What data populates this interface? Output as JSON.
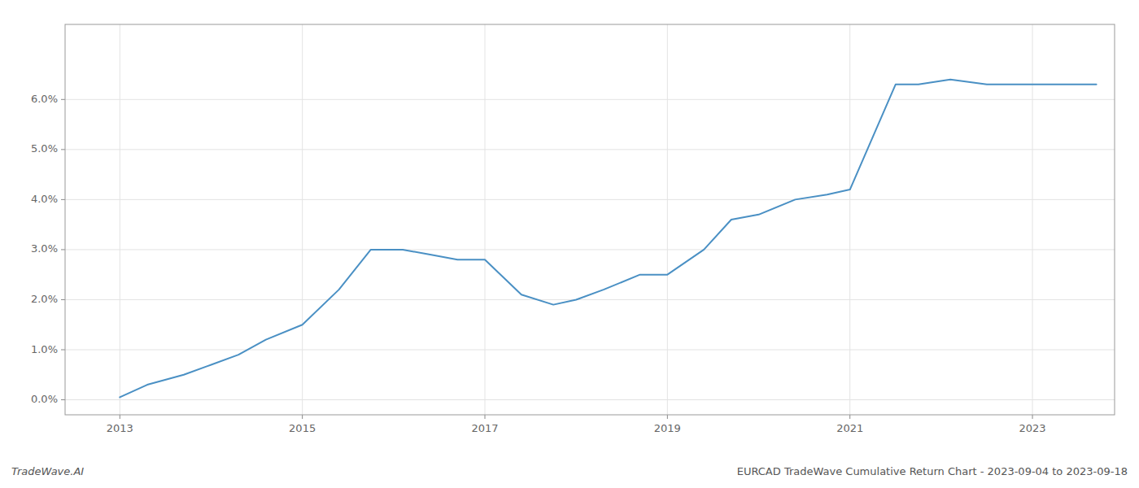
{
  "chart_data": {
    "type": "line",
    "title": "EURCAD TradeWave Cumulative Return Chart - 2023-09-04 to 2023-09-18",
    "annotations": [
      "TradeWave.AI"
    ],
    "color": "#4a90c4",
    "grid": true,
    "x": [
      2013.0,
      2013.3,
      2013.7,
      2014.0,
      2014.3,
      2014.6,
      2015.0,
      2015.4,
      2015.75,
      2016.1,
      2016.4,
      2016.7,
      2017.0,
      2017.4,
      2017.75,
      2018.0,
      2018.3,
      2018.7,
      2019.0,
      2019.4,
      2019.7,
      2020.0,
      2020.4,
      2020.75,
      2021.0,
      2021.5,
      2021.75,
      2022.1,
      2022.5,
      2023.0,
      2023.7
    ],
    "values": [
      0.0005,
      0.003,
      0.005,
      0.007,
      0.009,
      0.012,
      0.015,
      0.022,
      0.03,
      0.03,
      0.029,
      0.028,
      0.028,
      0.021,
      0.019,
      0.02,
      0.022,
      0.025,
      0.025,
      0.03,
      0.036,
      0.037,
      0.04,
      0.041,
      0.042,
      0.063,
      0.063,
      0.064,
      0.063,
      0.063,
      0.063
    ],
    "xlim": [
      2012.4,
      2023.9
    ],
    "xticks": [
      2013,
      2015,
      2017,
      2019,
      2021,
      2023
    ],
    "ylim": [
      -0.003,
      0.075
    ],
    "yticks": [
      {
        "value": 0.0,
        "label": "0.0%"
      },
      {
        "value": 0.01,
        "label": "1.0%"
      },
      {
        "value": 0.02,
        "label": "2.0%"
      },
      {
        "value": 0.03,
        "label": "3.0%"
      },
      {
        "value": 0.04,
        "label": "4.0%"
      },
      {
        "value": 0.05,
        "label": "5.0%"
      },
      {
        "value": 0.06,
        "label": "6.0%"
      }
    ]
  }
}
